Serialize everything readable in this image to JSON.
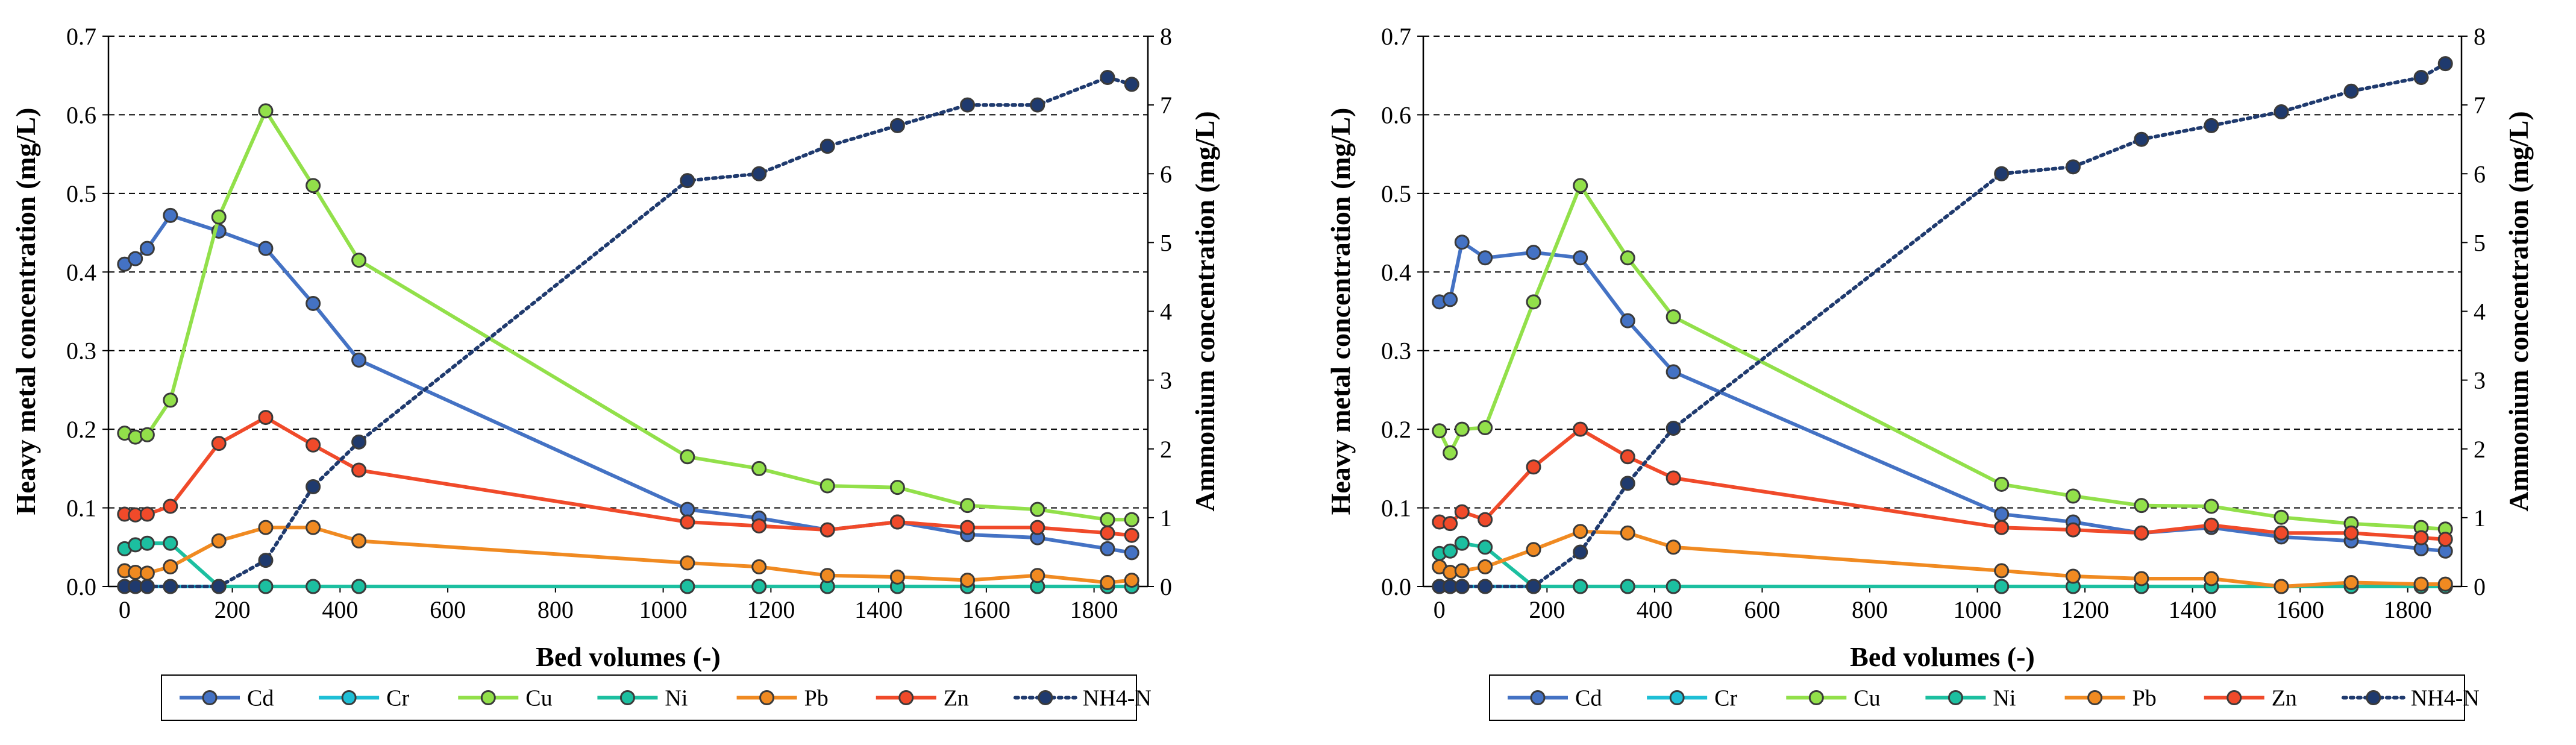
{
  "chart_data": [
    {
      "type": "line",
      "title": "",
      "xlabel": "Bed volumes (-)",
      "ylabel": "Heavy metal concentration (mg/L)",
      "y2label": "Ammonium concentration (mg/L)",
      "xlim": [
        -30,
        1900
      ],
      "ylim": [
        0,
        0.7
      ],
      "y2lim": [
        0,
        8
      ],
      "grid": "horizontal-dashed",
      "legend_position": "bottom",
      "x_ticks": [
        "0",
        "200",
        "400",
        "600",
        "800",
        "1000",
        "1200",
        "1400",
        "1600",
        "1800"
      ],
      "y_ticks": [
        "0.0",
        "0.1",
        "0.2",
        "0.3",
        "0.4",
        "0.5",
        "0.6",
        "0.7"
      ],
      "y2_ticks": [
        "0",
        "1",
        "2",
        "3",
        "4",
        "5",
        "6",
        "7",
        "8"
      ],
      "series": [
        {
          "name": "Cd",
          "color": "#4472C4",
          "axis": "left",
          "dash": false,
          "x": [
            0,
            20,
            42,
            85,
            175,
            262,
            350,
            435,
            1045,
            1178,
            1305,
            1435,
            1565,
            1695,
            1825,
            1870
          ],
          "y": [
            0.41,
            0.417,
            0.43,
            0.472,
            0.452,
            0.43,
            0.36,
            0.288,
            0.098,
            0.087,
            0.072,
            0.082,
            0.066,
            0.062,
            0.048,
            0.043
          ]
        },
        {
          "name": "Cr",
          "color": "#1EBFD6",
          "axis": "left",
          "dash": false,
          "x": [
            0,
            20,
            42,
            85,
            175,
            262,
            350,
            435,
            1045,
            1178,
            1305,
            1435,
            1565,
            1695,
            1825,
            1870
          ],
          "y": [
            0,
            0,
            0,
            0,
            0,
            0,
            0,
            0,
            0,
            0,
            0,
            0,
            0,
            0,
            0,
            0
          ]
        },
        {
          "name": "Cu",
          "color": "#92E04A",
          "axis": "left",
          "dash": false,
          "x": [
            0,
            20,
            42,
            85,
            175,
            262,
            350,
            435,
            1045,
            1178,
            1305,
            1435,
            1565,
            1695,
            1825,
            1870
          ],
          "y": [
            0.195,
            0.19,
            0.193,
            0.237,
            0.47,
            0.605,
            0.51,
            0.415,
            0.165,
            0.15,
            0.128,
            0.126,
            0.103,
            0.098,
            0.085,
            0.085
          ]
        },
        {
          "name": "Ni",
          "color": "#1CBFA0",
          "axis": "left",
          "dash": false,
          "x": [
            0,
            20,
            42,
            85,
            175,
            262,
            350,
            435,
            1045,
            1178,
            1305,
            1435,
            1565,
            1695,
            1825,
            1870
          ],
          "y": [
            0.048,
            0.053,
            0.055,
            0.055,
            0,
            0,
            0,
            0,
            0,
            0,
            0,
            0,
            0,
            0,
            0,
            0
          ]
        },
        {
          "name": "Pb",
          "color": "#F08A21",
          "axis": "left",
          "dash": false,
          "x": [
            0,
            20,
            42,
            85,
            175,
            262,
            350,
            435,
            1045,
            1178,
            1305,
            1435,
            1565,
            1695,
            1825,
            1870
          ],
          "y": [
            0.02,
            0.018,
            0.017,
            0.025,
            0.058,
            0.075,
            0.075,
            0.058,
            0.03,
            0.025,
            0.014,
            0.012,
            0.008,
            0.014,
            0.005,
            0.008
          ]
        },
        {
          "name": "Zn",
          "color": "#F04A2A",
          "axis": "left",
          "dash": false,
          "x": [
            0,
            20,
            42,
            85,
            175,
            262,
            350,
            435,
            1045,
            1178,
            1305,
            1435,
            1565,
            1695,
            1825,
            1870
          ],
          "y": [
            0.092,
            0.091,
            0.092,
            0.102,
            0.182,
            0.215,
            0.18,
            0.148,
            0.082,
            0.077,
            0.072,
            0.082,
            0.075,
            0.075,
            0.068,
            0.065
          ]
        },
        {
          "name": "NH4-N",
          "color": "#1F3A6E",
          "axis": "right",
          "dash": true,
          "x": [
            0,
            20,
            42,
            85,
            175,
            262,
            350,
            435,
            1045,
            1178,
            1305,
            1435,
            1565,
            1695,
            1825,
            1870
          ],
          "y": [
            0,
            0,
            0,
            0,
            0,
            0.38,
            1.45,
            2.1,
            5.9,
            6.0,
            6.4,
            6.7,
            7.0,
            7.0,
            7.4,
            7.3
          ]
        }
      ]
    },
    {
      "type": "line",
      "title": "",
      "xlabel": "Bed volumes (-)",
      "ylabel": "Heavy metal concentration (mg/L)",
      "y2label": "Ammonium concentration (mg/L)",
      "xlim": [
        -30,
        1900
      ],
      "ylim": [
        0,
        0.7
      ],
      "y2lim": [
        0,
        8
      ],
      "grid": "horizontal-dashed",
      "legend_position": "bottom",
      "x_ticks": [
        "0",
        "200",
        "400",
        "600",
        "800",
        "1000",
        "1200",
        "1400",
        "1600",
        "1800"
      ],
      "y_ticks": [
        "0.0",
        "0.1",
        "0.2",
        "0.3",
        "0.4",
        "0.5",
        "0.6",
        "0.7"
      ],
      "y2_ticks": [
        "0",
        "1",
        "2",
        "3",
        "4",
        "5",
        "6",
        "7",
        "8"
      ],
      "series": [
        {
          "name": "Cd",
          "color": "#4472C4",
          "axis": "left",
          "dash": false,
          "x": [
            0,
            20,
            42,
            85,
            175,
            262,
            350,
            435,
            1045,
            1178,
            1305,
            1435,
            1565,
            1695,
            1825,
            1870
          ],
          "y": [
            0.362,
            0.365,
            0.438,
            0.418,
            0.425,
            0.418,
            0.338,
            0.273,
            0.092,
            0.082,
            0.068,
            0.075,
            0.063,
            0.058,
            0.048,
            0.045
          ]
        },
        {
          "name": "Cr",
          "color": "#1EBFD6",
          "axis": "left",
          "dash": false,
          "x": [
            0,
            20,
            42,
            85,
            175,
            262,
            350,
            435,
            1045,
            1178,
            1305,
            1435,
            1565,
            1695,
            1825,
            1870
          ],
          "y": [
            0,
            0,
            0,
            0,
            0,
            0,
            0,
            0,
            0,
            0,
            0,
            0,
            0,
            0,
            0,
            0
          ]
        },
        {
          "name": "Cu",
          "color": "#92E04A",
          "axis": "left",
          "dash": false,
          "x": [
            0,
            20,
            42,
            85,
            175,
            262,
            350,
            435,
            1045,
            1178,
            1305,
            1435,
            1565,
            1695,
            1825,
            1870
          ],
          "y": [
            0.198,
            0.17,
            0.2,
            0.202,
            0.362,
            0.51,
            0.418,
            0.343,
            0.13,
            0.115,
            0.103,
            0.102,
            0.088,
            0.08,
            0.075,
            0.073
          ]
        },
        {
          "name": "Ni",
          "color": "#1CBFA0",
          "axis": "left",
          "dash": false,
          "x": [
            0,
            20,
            42,
            85,
            175,
            262,
            350,
            435,
            1045,
            1178,
            1305,
            1435,
            1565,
            1695,
            1825,
            1870
          ],
          "y": [
            0.042,
            0.045,
            0.055,
            0.05,
            0,
            0,
            0,
            0,
            0,
            0,
            0,
            0,
            0,
            0,
            0,
            0
          ]
        },
        {
          "name": "Pb",
          "color": "#F08A21",
          "axis": "left",
          "dash": false,
          "x": [
            0,
            20,
            42,
            85,
            175,
            262,
            350,
            435,
            1045,
            1178,
            1305,
            1435,
            1565,
            1695,
            1825,
            1870
          ],
          "y": [
            0.025,
            0.018,
            0.02,
            0.025,
            0.047,
            0.07,
            0.068,
            0.05,
            0.02,
            0.013,
            0.01,
            0.01,
            0,
            0.005,
            0.003,
            0.003
          ]
        },
        {
          "name": "Zn",
          "color": "#F04A2A",
          "axis": "left",
          "dash": false,
          "x": [
            0,
            20,
            42,
            85,
            175,
            262,
            350,
            435,
            1045,
            1178,
            1305,
            1435,
            1565,
            1695,
            1825,
            1870
          ],
          "y": [
            0.082,
            0.08,
            0.095,
            0.085,
            0.152,
            0.2,
            0.165,
            0.138,
            0.075,
            0.072,
            0.068,
            0.078,
            0.068,
            0.068,
            0.062,
            0.06
          ]
        },
        {
          "name": "NH4-N",
          "color": "#1F3A6E",
          "axis": "right",
          "dash": true,
          "x": [
            0,
            20,
            42,
            85,
            175,
            262,
            350,
            435,
            1045,
            1178,
            1305,
            1435,
            1565,
            1695,
            1825,
            1870
          ],
          "y": [
            0,
            0,
            0,
            0,
            0,
            0.5,
            1.5,
            2.3,
            6.0,
            6.1,
            6.5,
            6.7,
            6.9,
            7.2,
            7.4,
            7.6
          ]
        }
      ]
    }
  ]
}
